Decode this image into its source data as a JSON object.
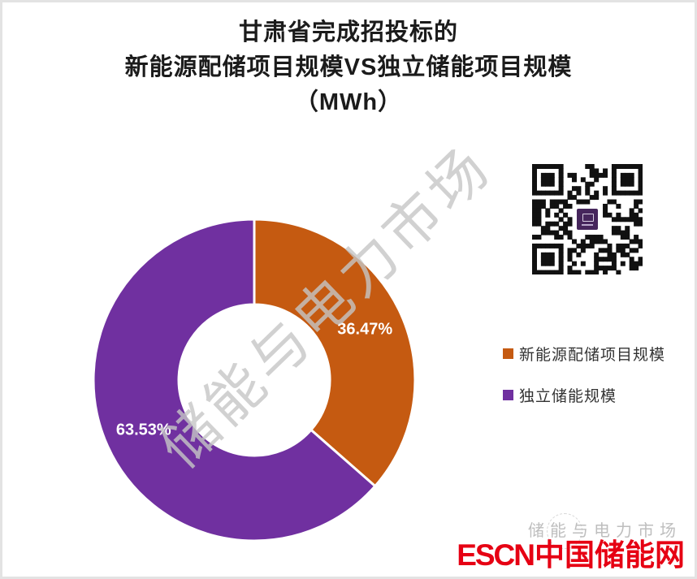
{
  "page": {
    "background": "#ffffff",
    "border_color": "#e3e3e3"
  },
  "title": {
    "line1": "甘肃省完成招投标的",
    "line2": "新能源配储项目规模VS独立储能项目规模",
    "line3": "（MWh）"
  },
  "chart_data": {
    "type": "pie",
    "subtype": "doughnut",
    "title": "甘肃省完成招投标的新能源配储项目规模VS独立储能项目规模（MWh）",
    "categories": [
      "新能源配储项目规模",
      "独立储能规模"
    ],
    "values": [
      36.47,
      63.53
    ],
    "value_unit": "percent_share",
    "labels": [
      "36.47%",
      "63.53%"
    ],
    "colors": [
      "#c55a11",
      "#7030a0"
    ],
    "label_color": "#ffffff",
    "start_angle_deg": 0,
    "direction": "clockwise",
    "donut_hole_ratio": 0.47,
    "legend_position": "right",
    "grid": false
  },
  "legend": {
    "items": [
      {
        "label": "新能源配储项目规模",
        "color": "#c55a11"
      },
      {
        "label": "独立储能规模",
        "color": "#7030a0"
      }
    ]
  },
  "watermark": {
    "diagonal_text": "储能与电力市场",
    "footer_text": "储能与电力市场",
    "color": "#c6c6c6"
  },
  "qr_code": {
    "name": "qr-code",
    "center_logo_color": "#46265c"
  },
  "branding": {
    "escn": "ESCN",
    "site_name": "中国储能网",
    "color": "#e60013"
  }
}
